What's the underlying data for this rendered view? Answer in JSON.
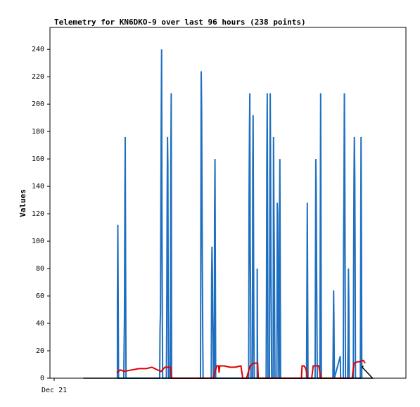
{
  "chart_data": {
    "type": "line",
    "title": "Telemetry for KN6DKO-9 over last 96 hours (238 points)",
    "xlabel": "",
    "ylabel": "Values",
    "ylim": [
      0,
      256
    ],
    "yticks": [
      0,
      20,
      40,
      60,
      80,
      100,
      120,
      140,
      160,
      180,
      200,
      220,
      240
    ],
    "xticks": [
      "Dec 21"
    ],
    "grid": false,
    "colors": {
      "blue": "#1f6fc0",
      "red": "#e00000",
      "black": "#000000"
    },
    "series": [
      {
        "color": "#1f6fc0",
        "points": [
          [
            18.2,
            0
          ],
          [
            18.2,
            56
          ],
          [
            18.3,
            112
          ],
          [
            18.4,
            56
          ],
          [
            18.5,
            0
          ],
          [
            19.9,
            0
          ],
          [
            20.1,
            44
          ],
          [
            20.2,
            132
          ],
          [
            20.3,
            176
          ],
          [
            20.4,
            88
          ],
          [
            20.5,
            0
          ],
          [
            29.6,
            0
          ],
          [
            29.7,
            36
          ],
          [
            29.8,
            48
          ],
          [
            29.9,
            120
          ],
          [
            30.0,
            180
          ],
          [
            30.1,
            240
          ],
          [
            30.2,
            120
          ],
          [
            30.3,
            50
          ],
          [
            30.4,
            0
          ],
          [
            31.4,
            0
          ],
          [
            31.5,
            40
          ],
          [
            31.6,
            130
          ],
          [
            31.7,
            176
          ],
          [
            31.8,
            155
          ],
          [
            31.9,
            60
          ],
          [
            32.0,
            0
          ],
          [
            32.4,
            0
          ],
          [
            32.5,
            52
          ],
          [
            32.6,
            156
          ],
          [
            32.7,
            208
          ],
          [
            32.8,
            0
          ],
          [
            40.6,
            0
          ],
          [
            40.7,
            112
          ],
          [
            40.8,
            224
          ],
          [
            40.9,
            196
          ],
          [
            41.0,
            140
          ],
          [
            41.1,
            84
          ],
          [
            41.2,
            28
          ],
          [
            41.3,
            0
          ],
          [
            43.5,
            0
          ],
          [
            43.6,
            72
          ],
          [
            43.7,
            96
          ],
          [
            43.8,
            76
          ],
          [
            43.9,
            44
          ],
          [
            44.0,
            28
          ],
          [
            44.1,
            0
          ],
          [
            44.3,
            0
          ],
          [
            44.4,
            120
          ],
          [
            44.5,
            160
          ],
          [
            44.6,
            80
          ],
          [
            44.7,
            0
          ],
          [
            53.6,
            0
          ],
          [
            53.7,
            128
          ],
          [
            53.8,
            180
          ],
          [
            53.9,
            208
          ],
          [
            54.0,
            100
          ],
          [
            54.1,
            60
          ],
          [
            54.2,
            0
          ],
          [
            54.6,
            0
          ],
          [
            54.7,
            156
          ],
          [
            54.8,
            192
          ],
          [
            54.9,
            100
          ],
          [
            55.0,
            30
          ],
          [
            55.1,
            0
          ],
          [
            55.9,
            0
          ],
          [
            55.9,
            80
          ],
          [
            56.0,
            0
          ],
          [
            58.3,
            0
          ],
          [
            58.4,
            56
          ],
          [
            58.5,
            160
          ],
          [
            58.6,
            208
          ],
          [
            58.7,
            104
          ],
          [
            58.8,
            0
          ],
          [
            59.2,
            0
          ],
          [
            59.3,
            140
          ],
          [
            59.4,
            208
          ],
          [
            59.5,
            156
          ],
          [
            59.6,
            84
          ],
          [
            59.7,
            40
          ],
          [
            59.8,
            0
          ],
          [
            60.2,
            0
          ],
          [
            60.3,
            176
          ],
          [
            60.4,
            120
          ],
          [
            60.5,
            90
          ],
          [
            60.6,
            40
          ],
          [
            60.7,
            0
          ],
          [
            61.2,
            0
          ],
          [
            61.3,
            128
          ],
          [
            61.4,
            120
          ],
          [
            61.5,
            80
          ],
          [
            61.6,
            40
          ],
          [
            61.7,
            0
          ],
          [
            61.8,
            0
          ],
          [
            61.9,
            120
          ],
          [
            62.0,
            160
          ],
          [
            62.1,
            80
          ],
          [
            62.2,
            0
          ],
          [
            69.2,
            0
          ],
          [
            69.3,
            64
          ],
          [
            69.4,
            128
          ],
          [
            69.5,
            64
          ],
          [
            69.6,
            0
          ],
          [
            71.5,
            0
          ],
          [
            71.6,
            80
          ],
          [
            71.7,
            160
          ],
          [
            71.8,
            140
          ],
          [
            71.9,
            80
          ],
          [
            72.0,
            40
          ],
          [
            72.1,
            0
          ],
          [
            72.8,
            0
          ],
          [
            72.9,
            104
          ],
          [
            73.0,
            208
          ],
          [
            73.1,
            104
          ],
          [
            73.2,
            0
          ],
          [
            76.3,
            0
          ],
          [
            76.4,
            30
          ],
          [
            76.5,
            64
          ],
          [
            76.6,
            40
          ],
          [
            76.7,
            0
          ],
          [
            78.3,
            16
          ],
          [
            78.4,
            0
          ],
          [
            79.1,
            0
          ],
          [
            79.2,
            108
          ],
          [
            79.3,
            144
          ],
          [
            79.4,
            208
          ],
          [
            79.5,
            164
          ],
          [
            79.6,
            76
          ],
          [
            79.7,
            0
          ],
          [
            80.3,
            0
          ],
          [
            80.4,
            28
          ],
          [
            80.5,
            80
          ],
          [
            80.6,
            56
          ],
          [
            80.7,
            0
          ],
          [
            81.8,
            0
          ],
          [
            81.9,
            88
          ],
          [
            82.0,
            144
          ],
          [
            82.1,
            176
          ],
          [
            82.2,
            148
          ],
          [
            82.3,
            90
          ],
          [
            82.4,
            0
          ],
          [
            83.7,
            0
          ],
          [
            83.8,
            88
          ],
          [
            83.9,
            176
          ],
          [
            84.0,
            96
          ],
          [
            84.1,
            0
          ]
        ]
      },
      {
        "color": "#e00000",
        "points": [
          [
            18.0,
            4
          ],
          [
            19.0,
            6
          ],
          [
            20.0,
            5
          ],
          [
            22.0,
            6
          ],
          [
            24.0,
            7
          ],
          [
            26.0,
            7
          ],
          [
            27.5,
            8
          ],
          [
            29.0,
            6
          ],
          [
            30.0,
            5
          ],
          [
            31.0,
            8
          ],
          [
            32.5,
            8
          ],
          [
            32.8,
            0
          ],
          [
            44.0,
            0
          ],
          [
            45.0,
            9
          ],
          [
            45.5,
            9
          ],
          [
            45.6,
            4
          ],
          [
            45.8,
            9
          ],
          [
            47.0,
            9
          ],
          [
            48.5,
            8
          ],
          [
            50.0,
            8
          ],
          [
            51.5,
            9
          ],
          [
            52.0,
            0
          ],
          [
            53.0,
            0
          ],
          [
            54.0,
            9
          ],
          [
            55.0,
            11
          ],
          [
            56.0,
            11
          ],
          [
            56.2,
            0
          ],
          [
            67.8,
            0
          ],
          [
            68.0,
            9
          ],
          [
            68.5,
            9
          ],
          [
            69.0,
            7
          ],
          [
            69.5,
            0
          ],
          [
            70.6,
            0
          ],
          [
            71.0,
            9
          ],
          [
            72.5,
            9
          ],
          [
            72.8,
            4
          ],
          [
            73.0,
            0
          ],
          [
            81.5,
            0
          ],
          [
            82.0,
            11
          ],
          [
            83.0,
            12
          ],
          [
            83.5,
            12
          ],
          [
            84.5,
            13
          ],
          [
            85.0,
            11
          ]
        ]
      },
      {
        "color": "#000000",
        "points": [
          [
            9.0,
            0
          ],
          [
            87.0,
            0
          ],
          [
            84.2,
            8
          ],
          [
            84.5,
            9
          ]
        ]
      }
    ]
  }
}
